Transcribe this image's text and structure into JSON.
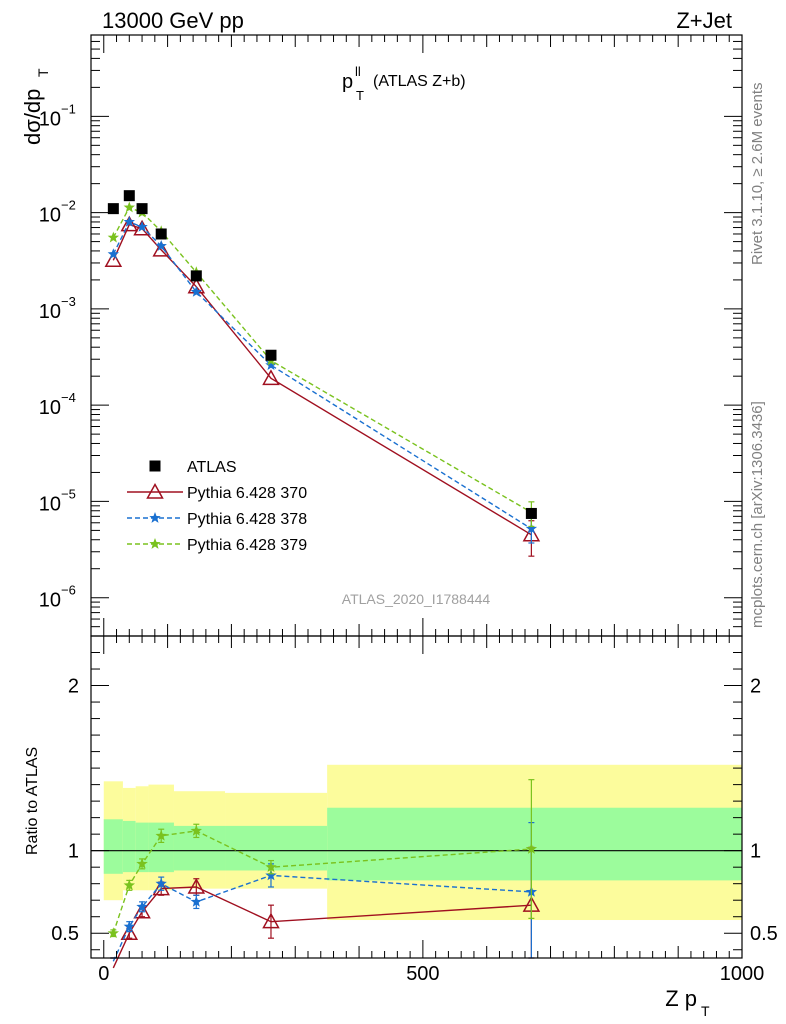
{
  "header": {
    "energy_label": "13000 GeV pp",
    "process_label": "Z+Jet",
    "analysis_title_main": "p",
    "analysis_title_sup": "ll",
    "analysis_title_sub": "T",
    "analysis_title_rest": "(ATLAS Z+b)",
    "analysis_id": "ATLAS_2020_I1788444",
    "rivet_label": "Rivet 3.1.10, ≥ 2.6M events",
    "mcplots_label": "mcplots.cern.ch [arXiv:1306.3436]"
  },
  "chart_data": [
    {
      "type": "scatter",
      "panel": "main",
      "ylabel_main": "dσ/dp",
      "ylabel_sub": "T",
      "yscale": "log",
      "ylim": [
        4e-07,
        0.7
      ],
      "xlim": [
        -20,
        1000
      ],
      "y_ticks": [
        {
          "value": 0.1,
          "mantissa": "10",
          "exp": "−1"
        },
        {
          "value": 0.01,
          "mantissa": "10",
          "exp": "−2"
        },
        {
          "value": 0.001,
          "mantissa": "10",
          "exp": "−3"
        },
        {
          "value": 0.0001,
          "mantissa": "10",
          "exp": "−4"
        },
        {
          "value": 1e-05,
          "mantissa": "10",
          "exp": "−5"
        },
        {
          "value": 1e-06,
          "mantissa": "10",
          "exp": "−6"
        }
      ],
      "legend_position": "bottom-left",
      "series": [
        {
          "name": "ATLAS",
          "color": "#000000",
          "marker": "square",
          "x": [
            15,
            40,
            60,
            90,
            145,
            262,
            670
          ],
          "y": [
            0.011,
            0.015,
            0.011,
            0.006,
            0.0022,
            0.00033,
            7.5e-06
          ]
        },
        {
          "name": "Pythia 6.428 370",
          "color": "#a01020",
          "marker": "triangle-open",
          "line": "solid",
          "x": [
            15,
            40,
            60,
            90,
            145,
            262,
            670
          ],
          "y": [
            0.0032,
            0.0075,
            0.0068,
            0.0041,
            0.0017,
            0.00019,
            4.5e-06
          ],
          "yerr": [
            0,
            0,
            0,
            0,
            0,
            0,
            1.8e-06
          ]
        },
        {
          "name": "Pythia 6.428 378",
          "color": "#1a70d0",
          "marker": "star",
          "line": "dashed",
          "x": [
            15,
            40,
            60,
            90,
            145,
            262,
            670
          ],
          "y": [
            0.0037,
            0.008,
            0.0071,
            0.0045,
            0.0015,
            0.00026,
            5.2e-06
          ],
          "yerr": [
            0,
            0,
            0,
            0,
            0,
            0,
            1.5e-06
          ]
        },
        {
          "name": "Pythia 6.428 379",
          "color": "#7ac21e",
          "marker": "star",
          "line": "dashed",
          "x": [
            15,
            40,
            60,
            90,
            145,
            262,
            670
          ],
          "y": [
            0.0055,
            0.0113,
            0.01,
            0.0064,
            0.0024,
            0.00029,
            7.7e-06
          ],
          "yerr": [
            0,
            0,
            0,
            0,
            0,
            0,
            2.2e-06
          ]
        }
      ]
    },
    {
      "type": "scatter",
      "panel": "ratio",
      "ylabel": "Ratio to ATLAS",
      "xlabel_main": "Z p",
      "xlabel_sub": "T",
      "yscale": "linear",
      "ylim": [
        0.35,
        2.3
      ],
      "xlim": [
        -20,
        1000
      ],
      "y_ticks": [
        {
          "value": 0.5,
          "label": "0.5"
        },
        {
          "value": 1,
          "label": "1"
        },
        {
          "value": 2,
          "label": "2"
        }
      ],
      "x_ticks": [
        {
          "value": 0,
          "label": "0"
        },
        {
          "value": 500,
          "label": "500"
        },
        {
          "value": 1000,
          "label": "1000"
        }
      ],
      "reference_line": 1,
      "bands": [
        {
          "x0": 0,
          "x1": 30,
          "inner": [
            0.86,
            1.19
          ],
          "outer": [
            0.7,
            1.42
          ]
        },
        {
          "x0": 30,
          "x1": 50,
          "inner": [
            0.87,
            1.18
          ],
          "outer": [
            0.76,
            1.38
          ]
        },
        {
          "x0": 50,
          "x1": 70,
          "inner": [
            0.87,
            1.17
          ],
          "outer": [
            0.76,
            1.39
          ]
        },
        {
          "x0": 70,
          "x1": 110,
          "inner": [
            0.87,
            1.17
          ],
          "outer": [
            0.76,
            1.4
          ]
        },
        {
          "x0": 110,
          "x1": 190,
          "inner": [
            0.88,
            1.15
          ],
          "outer": [
            0.77,
            1.36
          ]
        },
        {
          "x0": 190,
          "x1": 350,
          "inner": [
            0.88,
            1.15
          ],
          "outer": [
            0.77,
            1.35
          ]
        },
        {
          "x0": 350,
          "x1": 1000,
          "inner": [
            0.82,
            1.26
          ],
          "outer": [
            0.58,
            1.52
          ]
        }
      ],
      "band_colors": {
        "inner": "#9cfc9c",
        "outer": "#fcfc9c"
      },
      "series": [
        {
          "name": "Pythia 6.428 370",
          "color": "#a01020",
          "marker": "triangle-open",
          "line": "solid",
          "x": [
            15,
            40,
            60,
            90,
            145,
            262,
            670
          ],
          "y": [
            0.29,
            0.5,
            0.63,
            0.77,
            0.78,
            0.57,
            0.67
          ],
          "yerr": [
            0.02,
            0.03,
            0.03,
            0.04,
            0.05,
            0.1,
            0.35
          ]
        },
        {
          "name": "Pythia 6.428 378",
          "color": "#1a70d0",
          "marker": "star",
          "line": "dashed",
          "x": [
            15,
            40,
            60,
            90,
            145,
            262,
            670
          ],
          "y": [
            0.33,
            0.54,
            0.66,
            0.8,
            0.69,
            0.85,
            0.75
          ],
          "yerr": [
            0.02,
            0.03,
            0.03,
            0.04,
            0.04,
            0.07,
            0.42
          ]
        },
        {
          "name": "Pythia 6.428 379",
          "color": "#7ac21e",
          "marker": "star",
          "line": "dashed",
          "x": [
            15,
            40,
            60,
            90,
            145,
            262,
            670
          ],
          "y": [
            0.5,
            0.79,
            0.92,
            1.09,
            1.12,
            0.9,
            1.01
          ],
          "yerr": [
            0.02,
            0.03,
            0.03,
            0.04,
            0.04,
            0.04,
            0.42
          ]
        }
      ]
    }
  ]
}
